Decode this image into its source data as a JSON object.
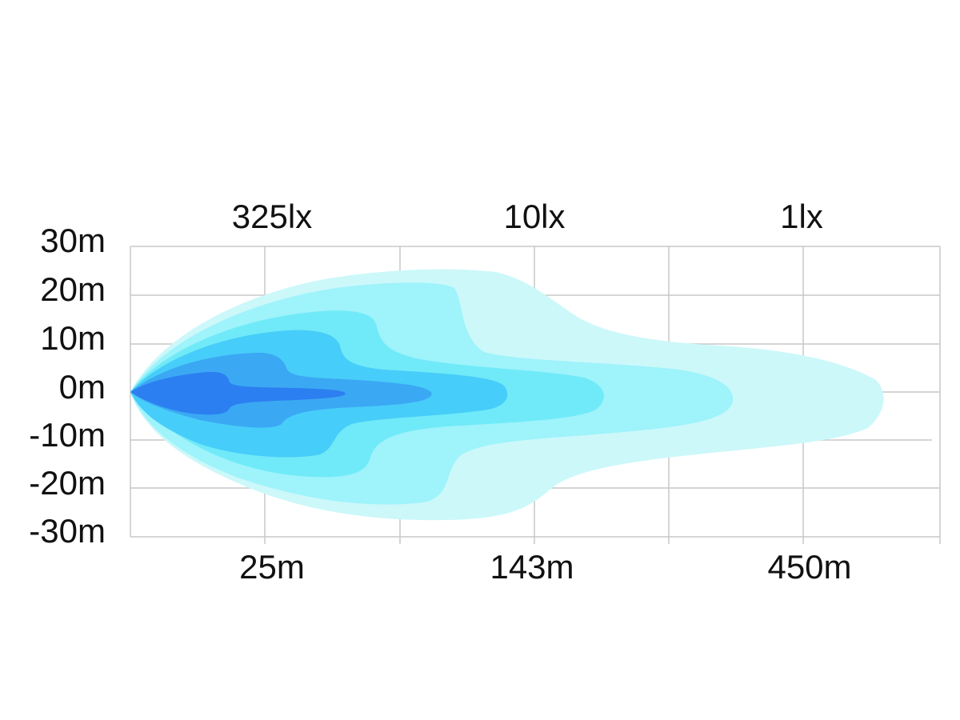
{
  "y_axis": {
    "labels": [
      "30m",
      "20m",
      "10m",
      "0m",
      "-10m",
      "-20m",
      "-30m"
    ]
  },
  "top_labels": [
    "325lx",
    "10lx",
    "1lx"
  ],
  "bottom_labels": [
    "25m",
    "143m",
    "450m"
  ]
}
